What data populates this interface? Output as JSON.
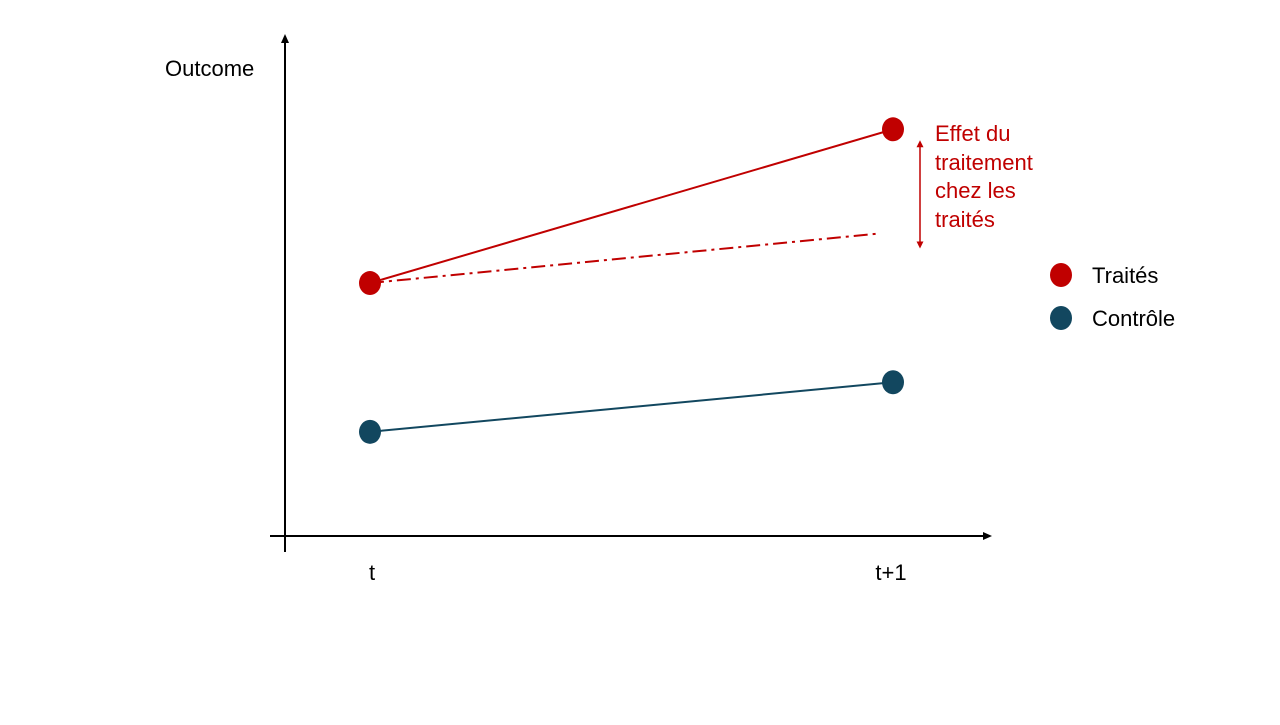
{
  "chart_data": {
    "type": "line",
    "ylabel": "Outcome",
    "xlabel": "",
    "categories": [
      "t",
      "t+1"
    ],
    "series": [
      {
        "name": "Traités",
        "values": [
          5.1,
          8.2
        ],
        "color": "#c00000",
        "style": "solid"
      },
      {
        "name": "Contrôle",
        "values": [
          2.1,
          3.1
        ],
        "color": "#12475f",
        "style": "solid"
      }
    ],
    "counterfactual": {
      "values": [
        5.1,
        6.1
      ],
      "color": "#c00000",
      "style": "dash-dot"
    },
    "annotation": {
      "lines": [
        "Effet du",
        "traitement",
        "chez les",
        "traités"
      ],
      "color": "#c00000"
    },
    "ylim": [
      0,
      10
    ],
    "grid": false,
    "legend": "right"
  }
}
